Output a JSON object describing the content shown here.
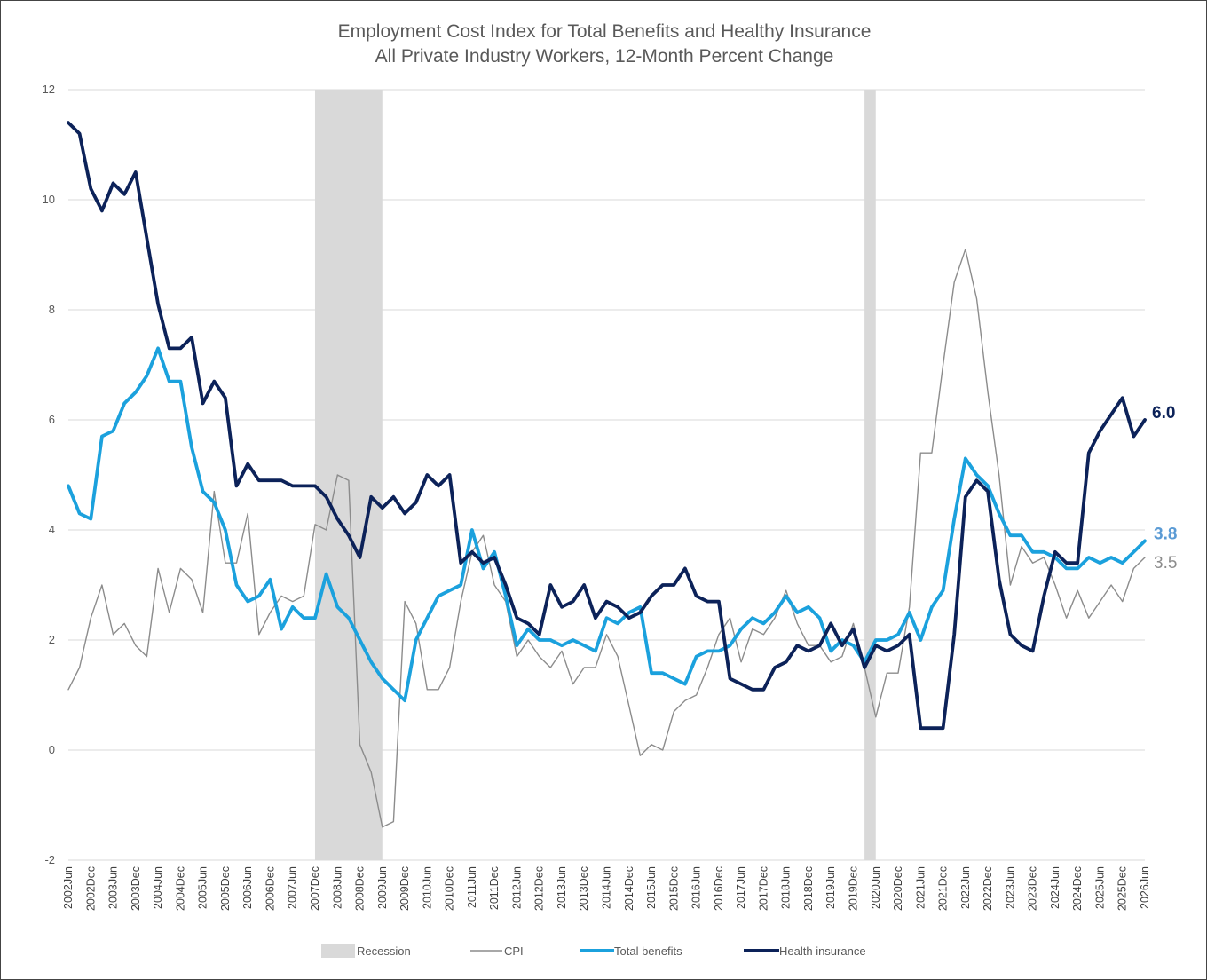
{
  "chart_data": {
    "type": "line",
    "title": "Employment Cost Index for Total Benefits and Healthy Insurance",
    "subtitle": "All Private Industry Workers, 12-Month Percent Change",
    "xlabel": "",
    "ylabel": "",
    "ylim": [
      -2,
      12
    ],
    "yticks": [
      "12",
      "10",
      "8",
      "6",
      "4",
      "2",
      "0",
      "-2"
    ],
    "grid": true,
    "legend_position": "bottom",
    "x_tick_labels": [
      "2002Jun",
      "2002Dec",
      "2003Jun",
      "2003Dec",
      "2004Jun",
      "2004Dec",
      "2005Jun",
      "2005Dec",
      "2006Jun",
      "2006Dec",
      "2007Jun",
      "2007Dec",
      "2008Jun",
      "2008Dec",
      "2009Jun",
      "2009Dec",
      "2010Jun",
      "2010Dec",
      "2011Jun",
      "2011Dec",
      "2012Jun",
      "2012Dec",
      "2013Jun",
      "2013Dec",
      "2014Jun",
      "2014Dec",
      "2015Jun",
      "2015Dec",
      "2016Jun",
      "2016Dec",
      "2017Jun",
      "2017Dec",
      "2018Jun",
      "2018Dec",
      "2019Jun",
      "2019Dec",
      "2020Jun",
      "2020Dec",
      "2021Jun",
      "2021Dec",
      "2022Jun",
      "2022Dec",
      "2023Jun",
      "2023Dec",
      "2024Jun",
      "2024Dec",
      "2025Jun",
      "2025Dec",
      "2026Jun"
    ],
    "recessions": [
      {
        "label": "Recession",
        "start": "2007Dec",
        "end": "2009Jun"
      },
      {
        "label": "Recession",
        "start": "2020Mar",
        "end": "2020Jun"
      }
    ],
    "series": [
      {
        "name": "CPI",
        "color": "#8c8c8c",
        "values": [
          1.1,
          1.5,
          2.4,
          3.0,
          2.1,
          2.3,
          1.9,
          1.7,
          3.3,
          2.5,
          3.3,
          3.1,
          2.5,
          4.7,
          3.4,
          3.4,
          4.3,
          2.1,
          2.5,
          2.8,
          2.7,
          2.8,
          4.1,
          4.0,
          5.0,
          4.9,
          0.1,
          -0.4,
          -1.4,
          -1.3,
          2.7,
          2.3,
          1.1,
          1.1,
          1.5,
          2.7,
          3.6,
          3.9,
          3.0,
          2.7,
          1.7,
          2.0,
          1.7,
          1.5,
          1.8,
          1.2,
          1.5,
          1.5,
          2.1,
          1.7,
          0.8,
          -0.1,
          0.1,
          0.0,
          0.7,
          0.9,
          1.0,
          1.5,
          2.1,
          2.4,
          1.6,
          2.2,
          2.1,
          2.4,
          2.9,
          2.3,
          1.9,
          1.9,
          1.6,
          1.7,
          2.3,
          1.5,
          0.6,
          1.4,
          1.4,
          2.6,
          5.4,
          5.4,
          7.0,
          8.5,
          9.1,
          8.2,
          6.5,
          5.0,
          3.0,
          3.7,
          3.4,
          3.5,
          3.0,
          2.4,
          2.9,
          2.4,
          2.7,
          3.0,
          2.7,
          3.3,
          3.5
        ],
        "end_label": "3.5"
      },
      {
        "name": "Total benefits",
        "color": "#1ba1dd",
        "values": [
          4.8,
          4.3,
          4.2,
          5.7,
          5.8,
          6.3,
          6.5,
          6.8,
          7.3,
          6.7,
          6.7,
          5.5,
          4.7,
          4.5,
          4.0,
          3.0,
          2.7,
          2.8,
          3.1,
          2.2,
          2.6,
          2.4,
          2.4,
          3.2,
          2.6,
          2.4,
          2.0,
          1.6,
          1.3,
          1.1,
          0.9,
          2.0,
          2.4,
          2.8,
          2.9,
          3.0,
          4.0,
          3.3,
          3.6,
          2.8,
          1.9,
          2.2,
          2.0,
          2.0,
          1.9,
          2.0,
          1.9,
          1.8,
          2.4,
          2.3,
          2.5,
          2.6,
          1.4,
          1.4,
          1.3,
          1.2,
          1.7,
          1.8,
          1.8,
          1.9,
          2.2,
          2.4,
          2.3,
          2.5,
          2.8,
          2.5,
          2.6,
          2.4,
          1.8,
          2.0,
          1.9,
          1.6,
          2.0,
          2.0,
          2.1,
          2.5,
          2.0,
          2.6,
          2.9,
          4.2,
          5.3,
          5.0,
          4.8,
          4.3,
          3.9,
          3.9,
          3.6,
          3.6,
          3.5,
          3.3,
          3.3,
          3.5,
          3.4,
          3.5,
          3.4,
          3.6,
          3.8
        ],
        "end_label": "3.8"
      },
      {
        "name": "Health insurance",
        "color": "#0c2259",
        "values": [
          11.4,
          11.2,
          10.2,
          9.8,
          10.3,
          10.1,
          10.5,
          9.3,
          8.1,
          7.3,
          7.3,
          7.5,
          6.3,
          6.7,
          6.4,
          4.8,
          5.2,
          4.9,
          4.9,
          4.9,
          4.8,
          4.8,
          4.8,
          4.6,
          4.2,
          3.9,
          3.5,
          4.6,
          4.4,
          4.6,
          4.3,
          4.5,
          5.0,
          4.8,
          5.0,
          3.4,
          3.6,
          3.4,
          3.5,
          3.0,
          2.4,
          2.3,
          2.1,
          3.0,
          2.6,
          2.7,
          3.0,
          2.4,
          2.7,
          2.6,
          2.4,
          2.5,
          2.8,
          3.0,
          3.0,
          3.3,
          2.8,
          2.7,
          2.7,
          1.3,
          1.2,
          1.1,
          1.1,
          1.5,
          1.6,
          1.9,
          1.8,
          1.9,
          2.3,
          1.9,
          2.2,
          1.5,
          1.9,
          1.8,
          1.9,
          2.1,
          0.4,
          0.4,
          0.4,
          2.1,
          4.6,
          4.9,
          4.7,
          3.1,
          2.1,
          1.9,
          1.8,
          2.8,
          3.6,
          3.4,
          3.4,
          5.4,
          5.8,
          6.1,
          6.4,
          5.7,
          6.0
        ],
        "end_label": "6.0"
      }
    ]
  },
  "legend": {
    "recession_label": "Recession",
    "cpi_label": "CPI",
    "total_benefits_label": "Total benefits",
    "health_insurance_label": "Health insurance"
  },
  "colors": {
    "recession": "#d9d9d9",
    "gridline": "#d9d9d9",
    "cpi": "#8c8c8c",
    "total_benefits": "#1ba1dd",
    "health_insurance": "#0c2259",
    "total_benefits_label": "#5b9bd5"
  }
}
